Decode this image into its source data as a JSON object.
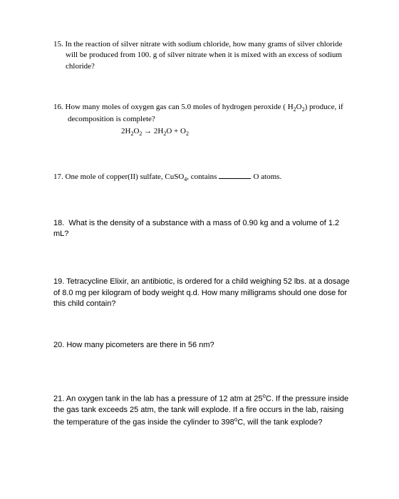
{
  "questions": {
    "q15": {
      "number": "15.",
      "text": "In the reaction of silver nitrate with sodium chloride, how many grams of silver chloride will be produced from 100. g of silver nitrate when it is mixed with an excess of sodium chloride?"
    },
    "q16": {
      "number": "16.",
      "text_a": "How many moles of oxygen gas can 5.0 moles of hydrogen peroxide ( H",
      "text_b": "O",
      "text_c": ") produce, if decomposition is complete?",
      "eq_a": "2H",
      "eq_b": "O",
      "eq_arrow": " → 2H",
      "eq_c": "O + O"
    },
    "q17": {
      "number": "17.",
      "text_a": "One mole of copper(II) sulfate, CuSO",
      "text_b": ", contains",
      "text_c": "O atoms."
    },
    "q18": {
      "number": "18.",
      "text": "What is the density of a substance with a mass of 0.90 kg and a volume of 1.2 mL?"
    },
    "q19": {
      "number": "19.",
      "text": "Tetracycline Elixir, an antibiotic, is ordered for a child weighing 52 lbs. at a dosage of 8.0 mg per kilogram of body weight q.d. How many milligrams should one dose for this child contain?"
    },
    "q20": {
      "number": "20.",
      "text": "How many picometers are there in 56 nm?"
    },
    "q21": {
      "number": "21.",
      "text_a": "An oxygen tank in the lab has a pressure of 12 atm at 25",
      "text_b": "C. If the pressure inside the gas tank exceeds 25 atm, the tank will explode. If a fire occurs in the lab, raising the temperature of the gas inside the cylinder to 398",
      "text_c": "C, will the tank explode?"
    }
  },
  "subscripts": {
    "two": "2",
    "four": "4"
  },
  "superscripts": {
    "deg": "o"
  }
}
